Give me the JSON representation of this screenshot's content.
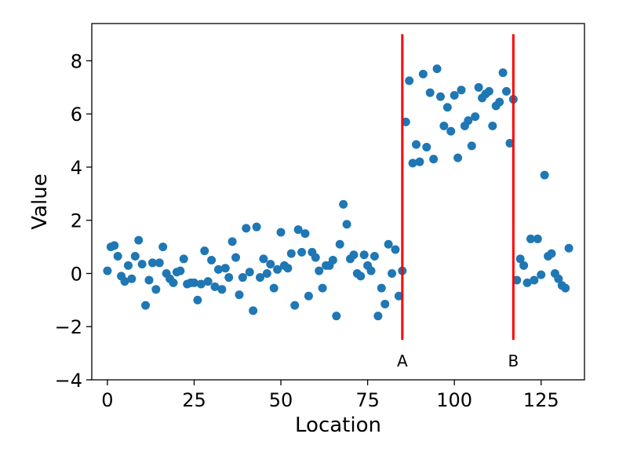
{
  "chart_data": {
    "type": "scatter",
    "title": "",
    "xlabel": "Location",
    "ylabel": "Value",
    "xlim": [
      -4.5,
      137.5
    ],
    "ylim": [
      -4,
      9.4
    ],
    "x_ticks": [
      0,
      25,
      50,
      75,
      100,
      125
    ],
    "y_ticks": [
      -4,
      -2,
      0,
      2,
      4,
      6,
      8
    ],
    "y_tick_labels": [
      "−4",
      "−2",
      "0",
      "2",
      "4",
      "6",
      "8"
    ],
    "grid": false,
    "marker_color": "#1f77b4",
    "x": [
      0,
      1,
      2,
      3,
      4,
      5,
      6,
      7,
      8,
      9,
      10,
      11,
      12,
      13,
      14,
      15,
      16,
      17,
      18,
      19,
      20,
      21,
      22,
      23,
      24,
      25,
      26,
      27,
      28,
      29,
      30,
      31,
      32,
      33,
      34,
      35,
      36,
      37,
      38,
      39,
      40,
      41,
      42,
      43,
      44,
      45,
      46,
      47,
      48,
      49,
      50,
      51,
      52,
      53,
      54,
      55,
      56,
      57,
      58,
      59,
      60,
      61,
      62,
      63,
      64,
      65,
      66,
      67,
      68,
      69,
      70,
      71,
      72,
      73,
      74,
      75,
      76,
      77,
      78,
      79,
      80,
      81,
      82,
      83,
      84,
      85,
      86,
      87,
      88,
      89,
      90,
      91,
      92,
      93,
      94,
      95,
      96,
      97,
      98,
      99,
      100,
      101,
      102,
      103,
      104,
      105,
      106,
      107,
      108,
      109,
      110,
      111,
      112,
      113,
      114,
      115,
      116,
      117,
      118,
      119,
      120,
      121,
      122,
      123,
      124,
      125,
      126,
      127,
      128,
      129,
      130,
      131,
      132,
      133
    ],
    "y": [
      0.1,
      1.0,
      1.05,
      0.65,
      -0.1,
      -0.3,
      0.3,
      -0.2,
      0.65,
      1.25,
      0.35,
      -1.2,
      -0.25,
      0.4,
      -0.6,
      0.4,
      1.0,
      0.0,
      -0.2,
      -0.35,
      0.05,
      0.1,
      0.55,
      -0.4,
      -0.35,
      -0.35,
      -1.0,
      -0.4,
      0.85,
      -0.3,
      0.5,
      -0.5,
      0.15,
      -0.6,
      0.2,
      -0.15,
      1.2,
      0.6,
      -0.8,
      -0.15,
      1.7,
      0.05,
      -1.4,
      1.75,
      -0.15,
      0.55,
      0.0,
      0.35,
      -0.55,
      0.15,
      1.55,
      0.3,
      0.2,
      0.75,
      -1.2,
      1.65,
      0.8,
      1.5,
      -0.85,
      0.8,
      0.6,
      0.1,
      -0.55,
      0.3,
      0.3,
      0.5,
      -1.6,
      1.1,
      2.6,
      1.85,
      0.55,
      0.7,
      0.0,
      -0.1,
      0.7,
      0.3,
      0.1,
      0.65,
      -1.6,
      -0.55,
      -1.15,
      1.1,
      0.0,
      0.9,
      -0.85,
      0.1,
      5.7,
      7.25,
      4.15,
      4.85,
      4.2,
      7.5,
      4.75,
      6.8,
      4.3,
      7.7,
      6.65,
      5.55,
      6.25,
      5.35,
      6.7,
      4.35,
      6.9,
      5.55,
      5.75,
      4.8,
      5.9,
      7.0,
      6.6,
      6.75,
      6.85,
      5.55,
      6.3,
      6.45,
      7.55,
      6.85,
      4.9,
      6.55,
      -0.25,
      0.55,
      0.3,
      -0.35,
      1.3,
      -0.25,
      1.3,
      -0.05,
      3.7,
      0.65,
      0.75,
      0.0,
      -0.2,
      -0.45,
      -0.55,
      0.95
    ],
    "vlines": [
      {
        "x": 85,
        "label": "A",
        "ymin": -2.5,
        "ymax": 9.0,
        "color": "#ff0000"
      },
      {
        "x": 117,
        "label": "B",
        "ymin": -2.5,
        "ymax": 9.0,
        "color": "#ff0000"
      }
    ]
  }
}
